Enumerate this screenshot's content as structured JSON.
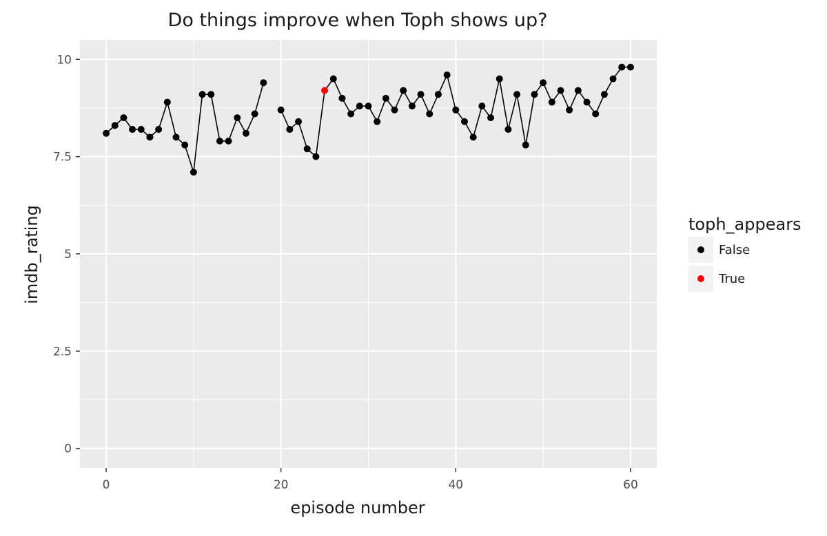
{
  "chart_data": {
    "type": "scatter",
    "title": "Do things improve when Toph shows up?",
    "xlabel": "episode number",
    "ylabel": "imdb_rating",
    "xlim": [
      -3,
      63
    ],
    "ylim": [
      -0.5,
      10.5
    ],
    "x_ticks": [
      0,
      20,
      40,
      60
    ],
    "x_tick_labels": [
      "0",
      "20",
      "40",
      "60"
    ],
    "y_ticks": [
      0,
      2.5,
      5,
      7.5,
      10
    ],
    "y_tick_labels": [
      "0",
      "2.5",
      "5",
      "7.5",
      "10"
    ],
    "grid": true,
    "legend": {
      "title": "toph_appears",
      "position": "right",
      "entries": [
        {
          "label": "False",
          "color": "#000000"
        },
        {
          "label": "True",
          "color": "#ff0000"
        }
      ]
    },
    "line_color": "#000000",
    "line_gap_after_episode": 18,
    "points": [
      {
        "x": 0,
        "y": 8.1,
        "toph": false
      },
      {
        "x": 1,
        "y": 8.3,
        "toph": false
      },
      {
        "x": 2,
        "y": 8.5,
        "toph": false
      },
      {
        "x": 3,
        "y": 8.2,
        "toph": false
      },
      {
        "x": 4,
        "y": 8.2,
        "toph": false
      },
      {
        "x": 5,
        "y": 8.0,
        "toph": false
      },
      {
        "x": 6,
        "y": 8.2,
        "toph": false
      },
      {
        "x": 7,
        "y": 8.9,
        "toph": false
      },
      {
        "x": 8,
        "y": 8.0,
        "toph": false
      },
      {
        "x": 9,
        "y": 7.8,
        "toph": false
      },
      {
        "x": 10,
        "y": 7.1,
        "toph": false
      },
      {
        "x": 11,
        "y": 9.1,
        "toph": false
      },
      {
        "x": 12,
        "y": 9.1,
        "toph": false
      },
      {
        "x": 13,
        "y": 7.9,
        "toph": false
      },
      {
        "x": 14,
        "y": 7.9,
        "toph": false
      },
      {
        "x": 15,
        "y": 8.5,
        "toph": false
      },
      {
        "x": 16,
        "y": 8.1,
        "toph": false
      },
      {
        "x": 17,
        "y": 8.6,
        "toph": false
      },
      {
        "x": 18,
        "y": 9.4,
        "toph": false
      },
      {
        "x": 20,
        "y": 8.7,
        "toph": false
      },
      {
        "x": 21,
        "y": 8.2,
        "toph": false
      },
      {
        "x": 22,
        "y": 8.4,
        "toph": false
      },
      {
        "x": 23,
        "y": 7.7,
        "toph": false
      },
      {
        "x": 24,
        "y": 7.5,
        "toph": false
      },
      {
        "x": 25,
        "y": 9.2,
        "toph": true
      },
      {
        "x": 26,
        "y": 9.5,
        "toph": false
      },
      {
        "x": 27,
        "y": 9.0,
        "toph": false
      },
      {
        "x": 28,
        "y": 8.6,
        "toph": false
      },
      {
        "x": 29,
        "y": 8.8,
        "toph": false
      },
      {
        "x": 30,
        "y": 8.8,
        "toph": false
      },
      {
        "x": 31,
        "y": 8.4,
        "toph": false
      },
      {
        "x": 32,
        "y": 9.0,
        "toph": false
      },
      {
        "x": 33,
        "y": 8.7,
        "toph": false
      },
      {
        "x": 34,
        "y": 9.2,
        "toph": false
      },
      {
        "x": 35,
        "y": 8.8,
        "toph": false
      },
      {
        "x": 36,
        "y": 9.1,
        "toph": false
      },
      {
        "x": 37,
        "y": 8.6,
        "toph": false
      },
      {
        "x": 38,
        "y": 9.1,
        "toph": false
      },
      {
        "x": 39,
        "y": 9.6,
        "toph": false
      },
      {
        "x": 40,
        "y": 8.7,
        "toph": false
      },
      {
        "x": 41,
        "y": 8.4,
        "toph": false
      },
      {
        "x": 42,
        "y": 8.0,
        "toph": false
      },
      {
        "x": 43,
        "y": 8.8,
        "toph": false
      },
      {
        "x": 44,
        "y": 8.5,
        "toph": false
      },
      {
        "x": 45,
        "y": 9.5,
        "toph": false
      },
      {
        "x": 46,
        "y": 8.2,
        "toph": false
      },
      {
        "x": 47,
        "y": 9.1,
        "toph": false
      },
      {
        "x": 48,
        "y": 7.8,
        "toph": false
      },
      {
        "x": 49,
        "y": 9.1,
        "toph": false
      },
      {
        "x": 50,
        "y": 9.4,
        "toph": false
      },
      {
        "x": 51,
        "y": 8.9,
        "toph": false
      },
      {
        "x": 52,
        "y": 9.2,
        "toph": false
      },
      {
        "x": 53,
        "y": 8.7,
        "toph": false
      },
      {
        "x": 54,
        "y": 9.2,
        "toph": false
      },
      {
        "x": 55,
        "y": 8.9,
        "toph": false
      },
      {
        "x": 56,
        "y": 8.6,
        "toph": false
      },
      {
        "x": 57,
        "y": 9.1,
        "toph": false
      },
      {
        "x": 58,
        "y": 9.5,
        "toph": false
      },
      {
        "x": 59,
        "y": 9.8,
        "toph": false
      },
      {
        "x": 60,
        "y": 9.8,
        "toph": false
      }
    ]
  }
}
